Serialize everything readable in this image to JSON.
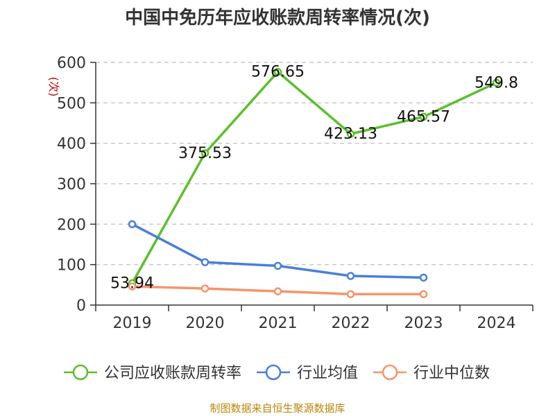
{
  "chart_data": {
    "type": "line",
    "title": "中国中免历年应收账款周转率情况(次)",
    "ylabel": "(次)",
    "xlabel": "",
    "categories": [
      "2019",
      "2020",
      "2021",
      "2022",
      "2023",
      "2024"
    ],
    "ylim": [
      0,
      600
    ],
    "yticks": [
      0,
      100,
      200,
      300,
      400,
      500,
      600
    ],
    "grid": "horizontal-dashed",
    "legend_position": "bottom",
    "series": [
      {
        "name": "公司应收账款周转率",
        "color": "#5cbf2a",
        "values": [
          53.94,
          375.53,
          576.65,
          423.13,
          465.57,
          549.8
        ],
        "labels": [
          "53.94",
          "375.53",
          "576.65",
          "423.13",
          "465.57",
          "549.8"
        ]
      },
      {
        "name": "行业均值",
        "color": "#4a7fd9",
        "values": [
          200,
          106,
          97,
          72,
          68,
          null
        ]
      },
      {
        "name": "行业中位数",
        "color": "#f4956a",
        "values": [
          46,
          41,
          34,
          27,
          27,
          null
        ]
      }
    ]
  },
  "source": "制图数据来自恒生聚源数据库"
}
